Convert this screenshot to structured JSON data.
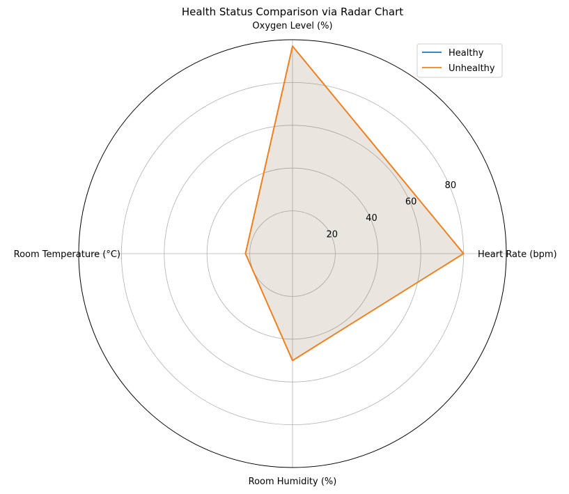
{
  "chart_data": {
    "type": "radar",
    "title": "Health Status Comparison via Radar Chart",
    "axes": [
      "Heart Rate (bpm)",
      "Oxygen Level (%)",
      "Room Temperature (°C)",
      "Room Humidity (%)"
    ],
    "rlim": [
      0,
      100
    ],
    "r_ticks": [
      20,
      40,
      60,
      80
    ],
    "r_tick_labels": [
      "20",
      "40",
      "60",
      "80"
    ],
    "grid": true,
    "legend_position": "top-right",
    "series": [
      {
        "name": "Healthy",
        "color": "#1f77b4",
        "values": [
          80,
          97,
          22,
          50
        ]
      },
      {
        "name": "Unhealthy",
        "color": "#ff7f0e",
        "values": [
          80,
          97,
          22,
          50
        ]
      }
    ]
  }
}
